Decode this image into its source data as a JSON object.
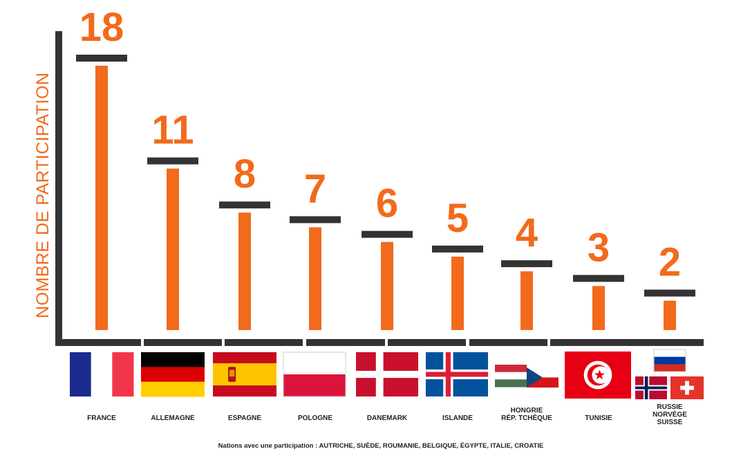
{
  "chart_data": {
    "type": "bar",
    "title": "",
    "ylabel": "NOMBRE DE PARTICIPATION",
    "xlabel": "",
    "ylim": [
      0,
      18
    ],
    "categories": [
      "FRANCE",
      "ALLEMAGNE",
      "ESPAGNE",
      "POLOGNE",
      "DANEMARK",
      "ISLANDE",
      "HONGRIE\nRÉP. TCHÈQUE",
      "TUNISIE",
      "RUSSIE\nNORVÈGE\nSUISSE"
    ],
    "values": [
      18,
      11,
      8,
      7,
      6,
      5,
      4,
      3,
      2
    ],
    "value_labels": [
      "18",
      "11",
      "8",
      "7",
      "6",
      "5",
      "4",
      "3",
      "2"
    ],
    "flags": [
      [
        "france-flag"
      ],
      [
        "germany-flag"
      ],
      [
        "spain-flag"
      ],
      [
        "poland-flag"
      ],
      [
        "denmark-flag"
      ],
      [
        "iceland-flag"
      ],
      [
        "hungary-flag",
        "czech-flag"
      ],
      [
        "tunisia-flag"
      ],
      [
        "russia-flag",
        "norway-flag",
        "switzerland-flag"
      ]
    ],
    "footnote": "Nations avec une participation : AUTRICHE, SUÈDE, ROUMANIE, BELGIQUE, ÉGYPTE, ITALIE, CROATIE",
    "colors": {
      "bar": "#f26a1b",
      "cap": "#333333",
      "axis": "#333333",
      "value": "#f26a1b",
      "ylabel": "#f26a1b"
    },
    "grid": false
  }
}
